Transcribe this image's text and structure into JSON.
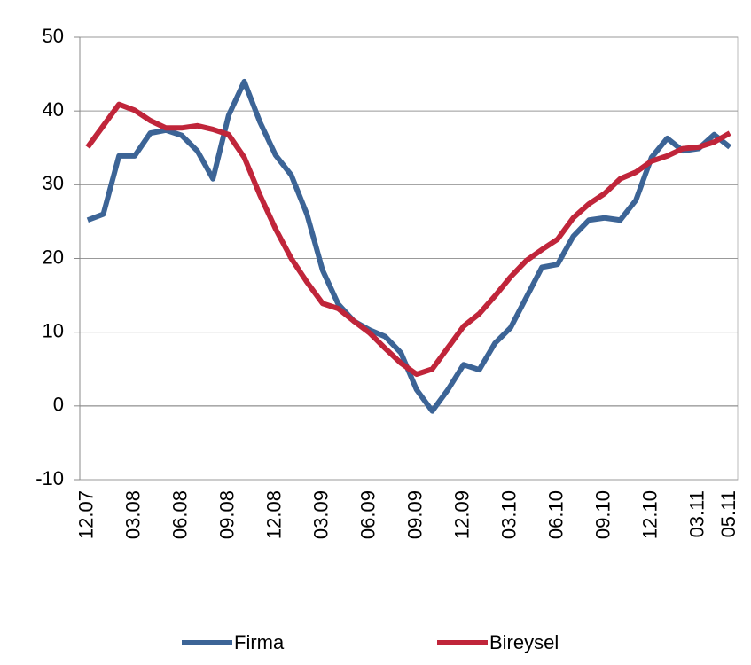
{
  "chart_data": {
    "type": "line",
    "categories": [
      "12.07",
      null,
      null,
      "03.08",
      null,
      null,
      "06.08",
      null,
      null,
      "09.08",
      null,
      null,
      "12.08",
      null,
      null,
      "03.09",
      null,
      null,
      "06.09",
      null,
      null,
      "09.09",
      null,
      null,
      "12.09",
      null,
      null,
      "03.10",
      null,
      null,
      "06.10",
      null,
      null,
      "09.10",
      null,
      null,
      "12.10",
      null,
      null,
      "03.11",
      null,
      "05.11"
    ],
    "series": [
      {
        "name": "Firma",
        "color": "#3c6496",
        "values": [
          25.2,
          26,
          33.9,
          33.9,
          37,
          37.4,
          36.7,
          34.6,
          30.8,
          39.4,
          44,
          38.5,
          34,
          31.3,
          26,
          18.4,
          13.8,
          11.5,
          10.3,
          9.4,
          7.2,
          2.2,
          -0.7,
          2.2,
          5.6,
          4.9,
          8.5,
          10.6,
          14.7,
          18.8,
          19.2,
          23,
          25.2,
          25.5,
          25.2,
          27.9,
          33.7,
          36.3,
          34.6,
          34.9,
          36.8,
          35.1
        ]
      },
      {
        "name": "Bireysel",
        "color": "#c0253a",
        "values": [
          35.1,
          38,
          40.9,
          40.1,
          38.7,
          37.7,
          37.7,
          38,
          37.5,
          36.8,
          33.7,
          28.6,
          24,
          20,
          16.8,
          13.9,
          13.2,
          11.5,
          9.9,
          7.8,
          5.8,
          4.3,
          5,
          7.9,
          10.8,
          12.5,
          14.9,
          17.5,
          19.7,
          21.2,
          22.6,
          25.5,
          27.4,
          28.8,
          30.8,
          31.7,
          33.2,
          33.9,
          34.9,
          35.1,
          35.8,
          37
        ]
      }
    ],
    "ylim": [
      -10,
      50
    ],
    "yticks": [
      -10,
      0,
      10,
      20,
      30,
      40,
      50
    ],
    "grid": true,
    "legend": "bottom"
  }
}
